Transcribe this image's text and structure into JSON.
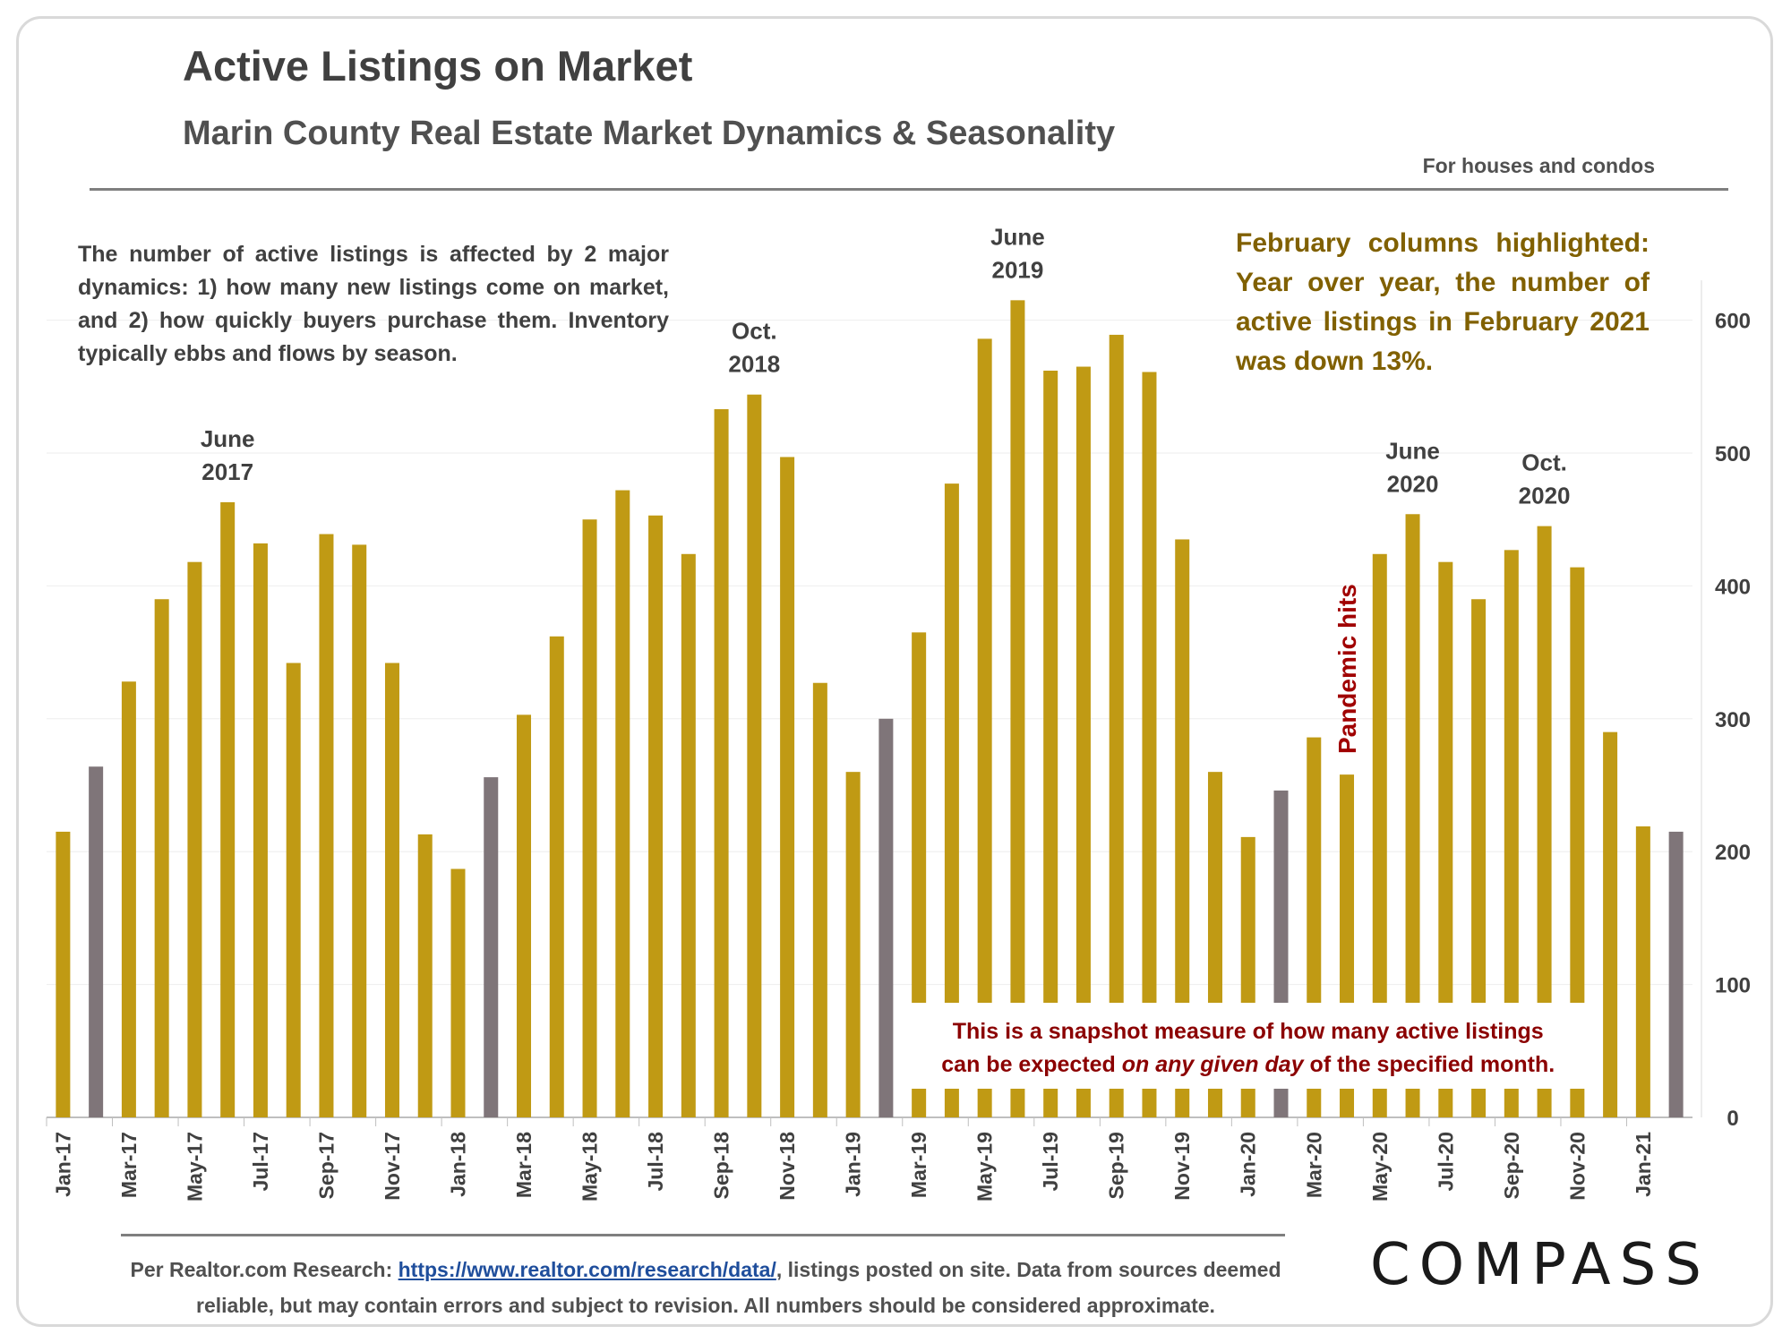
{
  "header": {
    "title": "Active Listings on Market",
    "subtitle": "Marin County Real Estate Market Dynamics & Seasonality",
    "note": "For houses and condos"
  },
  "description": "The number of active listings is affected by 2 major dynamics: 1) how many new listings come on market, and 2) how quickly buyers purchase them. Inventory typically ebbs and flows by season.",
  "highlight_note": "February columns highlighted: Year over year, the number of active listings in February 2021 was down 13%.",
  "footer": {
    "prefix": "Per Realtor.com Research: ",
    "link": "https://www.realtor.com/research/data/",
    "suffix": ", listings posted on site. Data from sources deemed reliable, but may contain errors and subject to revision. All numbers should be considered approximate."
  },
  "logo": "COMPASS",
  "colors": {
    "bar": "#c09a14",
    "highlight_bar": "#7f7579",
    "pandemic_text": "#a00000",
    "snapshot_text": "#8b0000",
    "highlight_note_text": "#806000"
  },
  "chart_data": {
    "type": "bar",
    "title": "Active Listings on Market",
    "subtitle": "Marin County Real Estate Market Dynamics & Seasonality",
    "xlabel": "",
    "ylabel": "",
    "ylim": [
      0,
      630
    ],
    "yticks": [
      0,
      100,
      200,
      300,
      400,
      500,
      600
    ],
    "y_axis_position": "right",
    "grid": true,
    "categories": [
      "Jan-17",
      "Feb-17",
      "Mar-17",
      "Apr-17",
      "May-17",
      "Jun-17",
      "Jul-17",
      "Aug-17",
      "Sep-17",
      "Oct-17",
      "Nov-17",
      "Dec-17",
      "Jan-18",
      "Feb-18",
      "Mar-18",
      "Apr-18",
      "May-18",
      "Jun-18",
      "Jul-18",
      "Aug-18",
      "Sep-18",
      "Oct-18",
      "Nov-18",
      "Dec-18",
      "Jan-19",
      "Feb-19",
      "Mar-19",
      "Apr-19",
      "May-19",
      "Jun-19",
      "Jul-19",
      "Aug-19",
      "Sep-19",
      "Oct-19",
      "Nov-19",
      "Dec-19",
      "Jan-20",
      "Feb-20",
      "Mar-20",
      "Apr-20",
      "May-20",
      "Jun-20",
      "Jul-20",
      "Aug-20",
      "Sep-20",
      "Oct-20",
      "Nov-20",
      "Dec-20",
      "Jan-21",
      "Feb-21"
    ],
    "tick_labels": [
      "Jan-17",
      "Mar-17",
      "May-17",
      "Jul-17",
      "Sep-17",
      "Nov-17",
      "Jan-18",
      "Mar-18",
      "May-18",
      "Jul-18",
      "Sep-18",
      "Nov-18",
      "Jan-19",
      "Mar-19",
      "May-19",
      "Jul-19",
      "Sep-19",
      "Nov-19",
      "Jan-20",
      "Mar-20",
      "May-20",
      "Jul-20",
      "Sep-20",
      "Nov-20",
      "Jan-21"
    ],
    "values": [
      215,
      264,
      328,
      390,
      418,
      463,
      432,
      342,
      439,
      431,
      342,
      213,
      187,
      256,
      303,
      362,
      450,
      472,
      453,
      424,
      533,
      544,
      497,
      327,
      260,
      300,
      365,
      477,
      586,
      615,
      562,
      565,
      589,
      561,
      435,
      260,
      211,
      246,
      286,
      258,
      424,
      454,
      418,
      390,
      427,
      445,
      414,
      290,
      219,
      215
    ],
    "highlighted": [
      "Feb-17",
      "Feb-18",
      "Feb-19",
      "Feb-20",
      "Feb-21"
    ],
    "annotations": [
      {
        "label_line1": "June",
        "label_line2": "2017",
        "category": "Jun-17"
      },
      {
        "label_line1": "Oct.",
        "label_line2": "2018",
        "category": "Oct-18"
      },
      {
        "label_line1": "June",
        "label_line2": "2019",
        "category": "Jun-19"
      },
      {
        "label_line1": "June",
        "label_line2": "2020",
        "category": "Jun-20"
      },
      {
        "label_line1": "Oct.",
        "label_line2": "2020",
        "category": "Oct-20"
      }
    ],
    "pandemic_label": "Pandemic hits",
    "snapshot_note": {
      "line1": "This is a snapshot measure of how many active listings",
      "line2_pre": "can be expected ",
      "line2_em": "on any given day",
      "line2_post": " of the specified month."
    }
  }
}
